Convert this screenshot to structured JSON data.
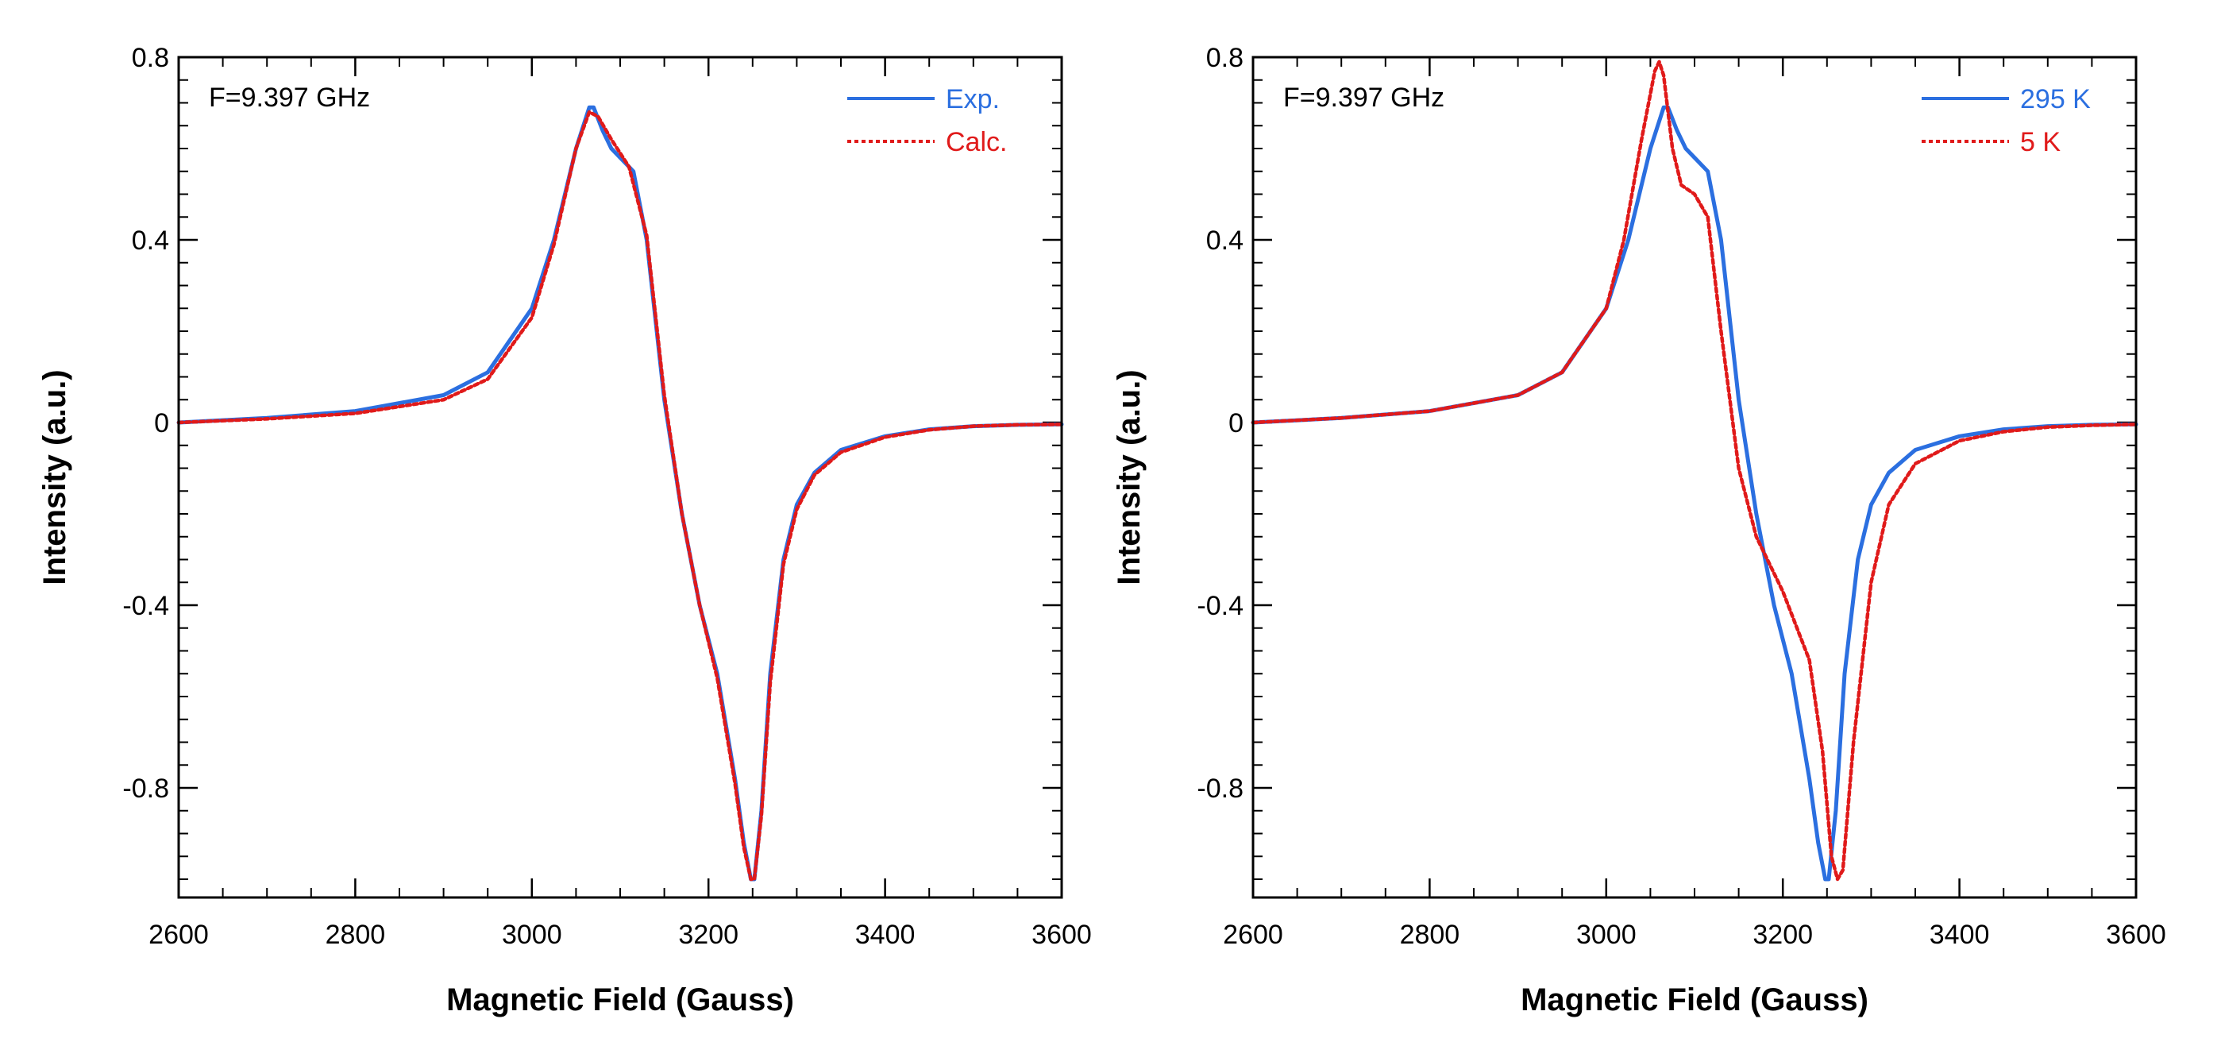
{
  "chart_data": [
    {
      "type": "line",
      "annotation": "F=9.397 GHz",
      "xlabel": "Magnetic Field (Gauss)",
      "ylabel": "Intensity (a.u.)",
      "xlim": [
        2600,
        3600
      ],
      "ylim": [
        -1.04,
        0.8
      ],
      "xticks": [
        2600,
        2800,
        3000,
        3200,
        3400,
        3600
      ],
      "xtick_labels": [
        "2600",
        "2800",
        "3000",
        "3200",
        "3400",
        "3600"
      ],
      "yticks": [
        0.8,
        0.4,
        0,
        -0.4,
        -0.8
      ],
      "ytick_labels": [
        "0.8",
        "0.4",
        "0",
        "-0.4",
        "-0.8"
      ],
      "legend_position": "top-right",
      "series": [
        {
          "name": "Exp.",
          "color": "#2b6fe0",
          "style": "solid",
          "x": [
            2600,
            2700,
            2800,
            2900,
            2950,
            3000,
            3025,
            3050,
            3065,
            3070,
            3080,
            3090,
            3100,
            3115,
            3130,
            3150,
            3170,
            3190,
            3210,
            3230,
            3240,
            3248,
            3252,
            3260,
            3270,
            3285,
            3300,
            3320,
            3350,
            3400,
            3450,
            3500,
            3550,
            3600
          ],
          "y": [
            0,
            0.01,
            0.025,
            0.06,
            0.11,
            0.25,
            0.4,
            0.6,
            0.69,
            0.69,
            0.64,
            0.6,
            0.58,
            0.55,
            0.4,
            0.05,
            -0.2,
            -0.4,
            -0.55,
            -0.78,
            -0.92,
            -1.0,
            -1.0,
            -0.85,
            -0.55,
            -0.3,
            -0.18,
            -0.11,
            -0.06,
            -0.03,
            -0.015,
            -0.008,
            -0.005,
            -0.004
          ]
        },
        {
          "name": "Calc.",
          "color": "#e01a1a",
          "style": "dotted",
          "x": [
            2600,
            2700,
            2800,
            2900,
            2950,
            3000,
            3025,
            3050,
            3065,
            3075,
            3090,
            3110,
            3130,
            3150,
            3170,
            3190,
            3210,
            3230,
            3240,
            3248,
            3252,
            3260,
            3270,
            3285,
            3300,
            3320,
            3350,
            3400,
            3450,
            3500,
            3550,
            3600
          ],
          "y": [
            0,
            0.008,
            0.02,
            0.05,
            0.095,
            0.23,
            0.39,
            0.6,
            0.68,
            0.67,
            0.62,
            0.56,
            0.41,
            0.06,
            -0.2,
            -0.4,
            -0.56,
            -0.79,
            -0.93,
            -1.0,
            -1.0,
            -0.86,
            -0.57,
            -0.31,
            -0.19,
            -0.115,
            -0.065,
            -0.032,
            -0.016,
            -0.008,
            -0.005,
            -0.004
          ]
        }
      ]
    },
    {
      "type": "line",
      "annotation": "F=9.397 GHz",
      "xlabel": "Magnetic Field (Gauss)",
      "ylabel": "Intensity (a.u.)",
      "xlim": [
        2600,
        3600
      ],
      "ylim": [
        -1.04,
        0.8
      ],
      "xticks": [
        2600,
        2800,
        3000,
        3200,
        3400,
        3600
      ],
      "xtick_labels": [
        "2600",
        "2800",
        "3000",
        "3200",
        "3400",
        "3600"
      ],
      "yticks": [
        0.8,
        0.4,
        0,
        -0.4,
        -0.8
      ],
      "ytick_labels": [
        "0.8",
        "0.4",
        "0",
        "-0.4",
        "-0.8"
      ],
      "legend_position": "top-right",
      "series": [
        {
          "name": "295 K",
          "color": "#2b6fe0",
          "style": "solid",
          "x": [
            2600,
            2700,
            2800,
            2900,
            2950,
            3000,
            3025,
            3050,
            3065,
            3070,
            3080,
            3090,
            3100,
            3115,
            3130,
            3150,
            3170,
            3190,
            3210,
            3230,
            3240,
            3248,
            3252,
            3260,
            3270,
            3285,
            3300,
            3320,
            3350,
            3400,
            3450,
            3500,
            3550,
            3600
          ],
          "y": [
            0,
            0.01,
            0.025,
            0.06,
            0.11,
            0.25,
            0.4,
            0.6,
            0.69,
            0.69,
            0.64,
            0.6,
            0.58,
            0.55,
            0.4,
            0.05,
            -0.2,
            -0.4,
            -0.55,
            -0.78,
            -0.92,
            -1.0,
            -1.0,
            -0.85,
            -0.55,
            -0.3,
            -0.18,
            -0.11,
            -0.06,
            -0.03,
            -0.015,
            -0.008,
            -0.005,
            -0.004
          ]
        },
        {
          "name": "5 K",
          "color": "#e01a1a",
          "style": "dotted",
          "x": [
            2600,
            2700,
            2800,
            2900,
            2950,
            3000,
            3020,
            3040,
            3055,
            3060,
            3065,
            3075,
            3085,
            3100,
            3115,
            3130,
            3150,
            3170,
            3200,
            3230,
            3245,
            3255,
            3262,
            3268,
            3280,
            3300,
            3320,
            3350,
            3400,
            3450,
            3500,
            3550,
            3600
          ],
          "y": [
            0,
            0.01,
            0.025,
            0.06,
            0.11,
            0.25,
            0.4,
            0.62,
            0.77,
            0.79,
            0.76,
            0.6,
            0.52,
            0.5,
            0.45,
            0.2,
            -0.1,
            -0.25,
            -0.37,
            -0.52,
            -0.72,
            -0.95,
            -1.0,
            -0.98,
            -0.7,
            -0.35,
            -0.18,
            -0.09,
            -0.04,
            -0.02,
            -0.01,
            -0.006,
            -0.004
          ]
        }
      ]
    }
  ]
}
